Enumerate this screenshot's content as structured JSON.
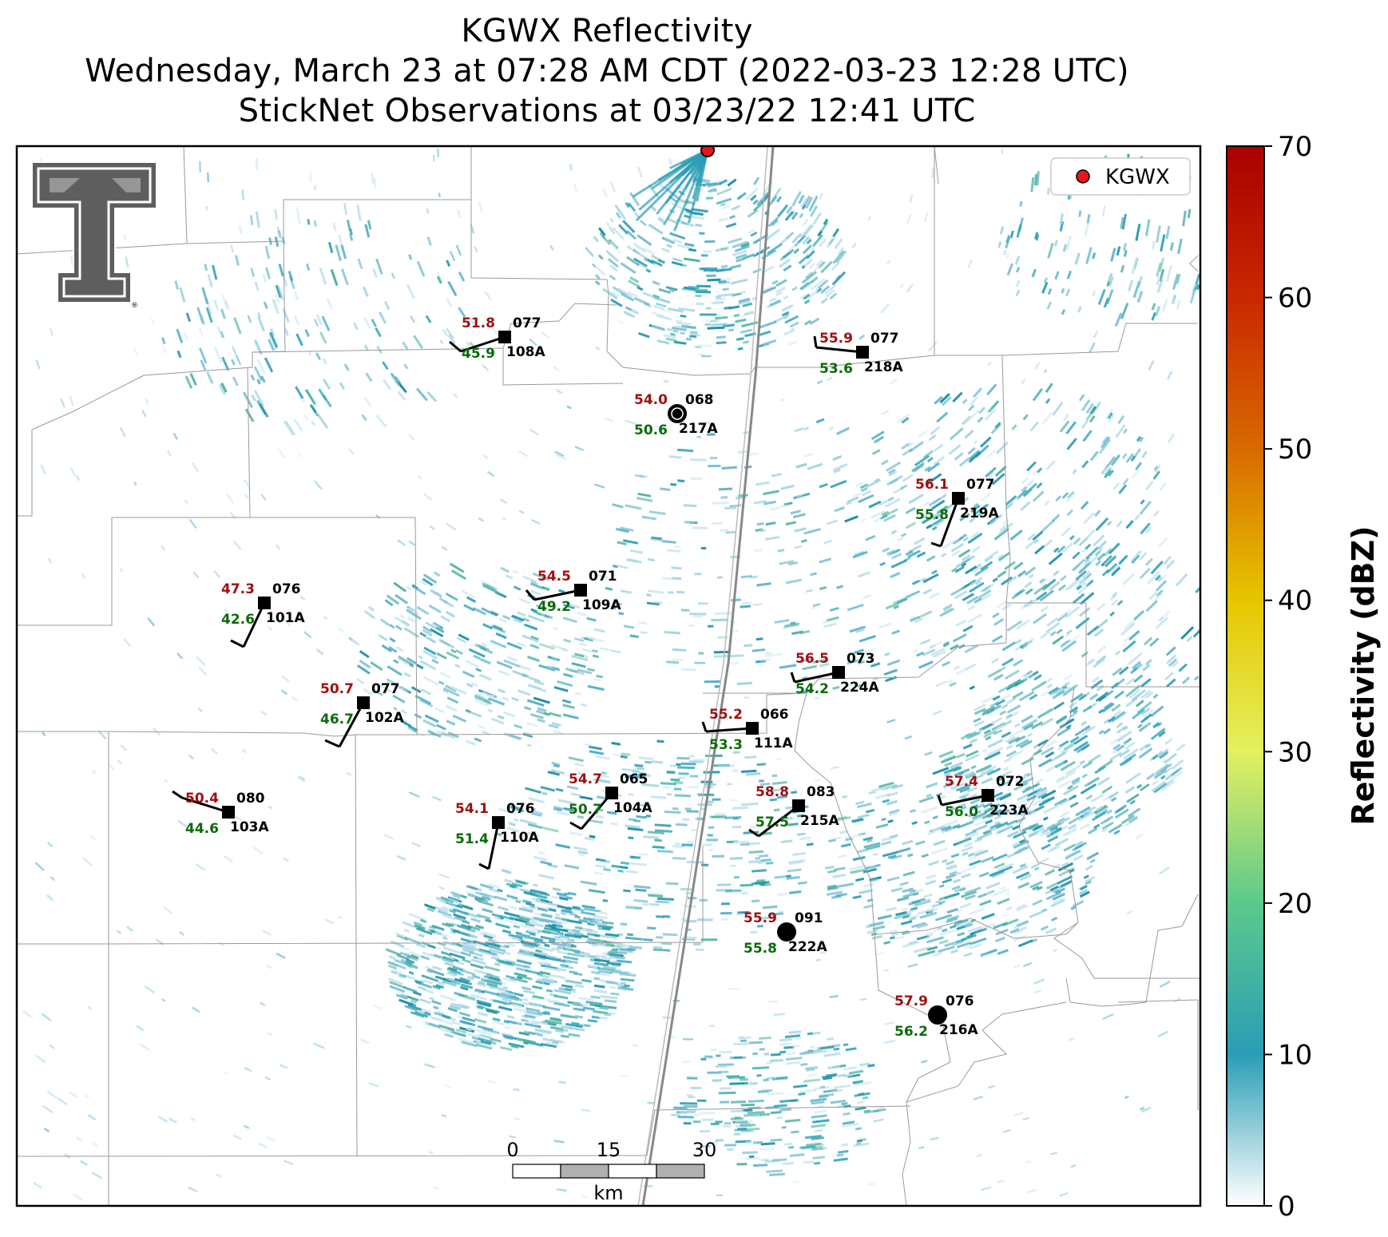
{
  "title": {
    "line1": "KGWX Reflectivity",
    "line2": "Wednesday, March 23 at 07:28 AM CDT (2022-03-23 12:28 UTC)",
    "line3": "StickNet Observations at 03/23/22 12:41 UTC"
  },
  "legend": {
    "label": "KGWX",
    "marker_color": "#e8141c"
  },
  "colorbar": {
    "label": "Reflectivity (dBZ)",
    "ticks": [
      "0",
      "10",
      "20",
      "30",
      "40",
      "50",
      "60",
      "70"
    ],
    "colors": [
      "#ffffff",
      "#2a9db5",
      "#5cc98c",
      "#e4f060",
      "#e6c600",
      "#d86a00",
      "#c82800",
      "#a80000"
    ]
  },
  "scale_bar": {
    "labels": [
      "0",
      "15",
      "30"
    ],
    "unit": "km"
  },
  "logo": {
    "text": "TT",
    "registered": "®"
  },
  "stations": [
    {
      "id": "108A",
      "temp": "51.8",
      "dew": "45.9",
      "dir": "077",
      "marker": "square"
    },
    {
      "id": "218A",
      "temp": "55.9",
      "dew": "53.6",
      "dir": "077",
      "marker": "square"
    },
    {
      "id": "217A",
      "temp": "54.0",
      "dew": "50.6",
      "dir": "068",
      "marker": "circle-open"
    },
    {
      "id": "219A",
      "temp": "56.1",
      "dew": "55.8",
      "dir": "077",
      "marker": "square"
    },
    {
      "id": "109A",
      "temp": "54.5",
      "dew": "49.2",
      "dir": "071",
      "marker": "square"
    },
    {
      "id": "101A",
      "temp": "47.3",
      "dew": "42.6",
      "dir": "076",
      "marker": "square"
    },
    {
      "id": "224A",
      "temp": "56.5",
      "dew": "54.2",
      "dir": "073",
      "marker": "square"
    },
    {
      "id": "102A",
      "temp": "50.7",
      "dew": "46.7",
      "dir": "077",
      "marker": "square"
    },
    {
      "id": "111A",
      "temp": "55.2",
      "dew": "53.3",
      "dir": "066",
      "marker": "square"
    },
    {
      "id": "103A",
      "temp": "50.4",
      "dew": "44.6",
      "dir": "080",
      "marker": "square"
    },
    {
      "id": "104A",
      "temp": "54.7",
      "dew": "50.7",
      "dir": "065",
      "marker": "square"
    },
    {
      "id": "110A",
      "temp": "54.1",
      "dew": "51.4",
      "dir": "076",
      "marker": "square"
    },
    {
      "id": "215A",
      "temp": "58.8",
      "dew": "57.5",
      "dir": "083",
      "marker": "square"
    },
    {
      "id": "223A",
      "temp": "57.4",
      "dew": "56.0",
      "dir": "072",
      "marker": "square"
    },
    {
      "id": "222A",
      "temp": "55.9",
      "dew": "55.8",
      "dir": "091",
      "marker": "circle"
    },
    {
      "id": "216A",
      "temp": "57.9",
      "dew": "56.2",
      "dir": "076",
      "marker": "circle"
    }
  ]
}
